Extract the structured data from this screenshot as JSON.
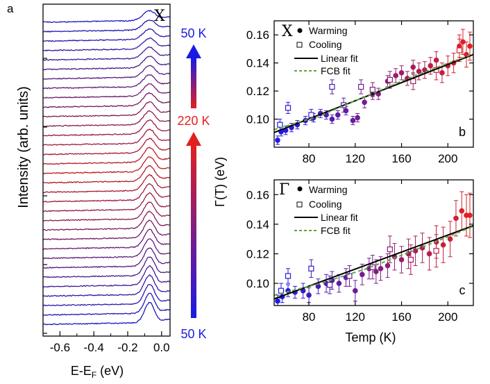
{
  "figure": {
    "panel_a": {
      "label": "a",
      "symmetry_point": "X",
      "ylabel": "Intensity (arb. units)",
      "xlabel_main": "E-E",
      "xlabel_sub": "F",
      "xlabel_unit": " (eV)",
      "temp_top": "50 K",
      "temp_mid": "220 K",
      "temp_bottom": "50 K",
      "colors": {
        "cold": "#1a1ae6",
        "hot": "#e32020"
      }
    },
    "panel_b": {
      "label": "b",
      "symmetry": "X",
      "legend": {
        "warming": "Warming",
        "cooling": "Cooling",
        "linear": "Linear fit",
        "fcb": "FCB fit"
      }
    },
    "panel_c": {
      "label": "c",
      "symmetry": "Γ",
      "legend": {
        "warming": "Warming",
        "cooling": "Cooling",
        "linear": "Linear fit",
        "fcb": "FCB fit"
      }
    },
    "shared": {
      "ylabel_bc": "Γ(T) (eV)",
      "xlabel_bc": "Temp (K)"
    }
  },
  "chart_data": [
    {
      "type": "line",
      "panel": "a",
      "title": "",
      "xlabel": "E-E_F (eV)",
      "ylabel": "Intensity (arb. units)",
      "xlim": [
        -0.7,
        0.05
      ],
      "xticks": [
        -0.6,
        -0.4,
        -0.2,
        0.0
      ],
      "xtick_labels": [
        "-0.6",
        "-0.4",
        "-0.2",
        "0.0"
      ],
      "n_curves": 33,
      "temperature_sequence_K": [
        50,
        220,
        50
      ],
      "annotations": [
        "X",
        "50 K",
        "220 K",
        "50 K"
      ],
      "peak_position_eV": -0.07
    },
    {
      "type": "scatter",
      "panel": "b",
      "symmetry": "X",
      "xlabel": "Temp (K)",
      "ylabel": "Γ(T) (eV)",
      "xlim": [
        50,
        222
      ],
      "ylim": [
        0.08,
        0.17
      ],
      "xticks": [
        80,
        120,
        160,
        200
      ],
      "yticks": [
        0.1,
        0.12,
        0.14,
        0.16
      ],
      "ytick_labels": [
        "0.10",
        "0.12",
        "0.14",
        "0.16"
      ],
      "series": [
        {
          "name": "Warming",
          "marker": "filled-circle",
          "x": [
            53,
            56,
            60,
            65,
            70,
            77,
            84,
            90,
            95,
            100,
            105,
            112,
            118,
            122,
            128,
            135,
            140,
            148,
            155,
            160,
            165,
            170,
            175,
            180,
            185,
            190,
            195,
            200,
            205,
            210,
            213,
            216,
            219
          ],
          "y": [
            0.085,
            0.091,
            0.092,
            0.094,
            0.096,
            0.099,
            0.101,
            0.104,
            0.103,
            0.1,
            0.103,
            0.106,
            0.099,
            0.101,
            0.112,
            0.118,
            0.118,
            0.127,
            0.131,
            0.133,
            0.129,
            0.137,
            0.134,
            0.135,
            0.138,
            0.142,
            0.133,
            0.138,
            0.14,
            0.152,
            0.155,
            0.146,
            0.152
          ],
          "err": [
            0.003,
            0.003,
            0.003,
            0.003,
            0.003,
            0.003,
            0.003,
            0.003,
            0.003,
            0.003,
            0.003,
            0.003,
            0.003,
            0.003,
            0.004,
            0.004,
            0.004,
            0.004,
            0.005,
            0.005,
            0.005,
            0.005,
            0.006,
            0.006,
            0.006,
            0.006,
            0.007,
            0.007,
            0.007,
            0.008,
            0.009,
            0.009,
            0.01
          ]
        },
        {
          "name": "Cooling",
          "marker": "open-square",
          "x": [
            55,
            62,
            82,
            100,
            110,
            125,
            135,
            150,
            170,
            190,
            210
          ],
          "y": [
            0.096,
            0.108,
            0.103,
            0.123,
            0.11,
            0.123,
            0.121,
            0.128,
            0.127,
            0.135,
            0.149
          ],
          "err": [
            0.004,
            0.004,
            0.004,
            0.005,
            0.005,
            0.005,
            0.005,
            0.006,
            0.006,
            0.007,
            0.008
          ]
        },
        {
          "name": "Linear fit",
          "style": "solid-black",
          "x": [
            50,
            222
          ],
          "y": [
            0.0905,
            0.146
          ]
        },
        {
          "name": "FCB fit",
          "style": "dashed-green",
          "x": [
            50,
            90,
            130,
            170,
            222
          ],
          "y": [
            0.0925,
            0.1025,
            0.1165,
            0.1305,
            0.1465
          ]
        }
      ]
    },
    {
      "type": "scatter",
      "panel": "c",
      "symmetry": "Γ",
      "xlabel": "Temp (K)",
      "ylabel": "Γ(T) (eV)",
      "xlim": [
        50,
        222
      ],
      "ylim": [
        0.085,
        0.17
      ],
      "xticks": [
        80,
        120,
        160,
        200
      ],
      "xtick_labels": [
        "80",
        "120",
        "160",
        "200"
      ],
      "yticks": [
        0.1,
        0.12,
        0.14,
        0.16
      ],
      "ytick_labels": [
        "0.10",
        "0.12",
        "0.14",
        "0.16"
      ],
      "series": [
        {
          "name": "Warming",
          "marker": "filled-circle",
          "x": [
            53,
            57,
            62,
            68,
            75,
            80,
            88,
            95,
            100,
            106,
            112,
            120,
            126,
            132,
            138,
            142,
            148,
            154,
            160,
            166,
            172,
            178,
            184,
            190,
            196,
            202,
            207,
            212,
            216,
            219
          ],
          "y": [
            0.088,
            0.091,
            0.095,
            0.094,
            0.095,
            0.092,
            0.098,
            0.1,
            0.102,
            0.1,
            0.104,
            0.095,
            0.106,
            0.11,
            0.108,
            0.11,
            0.112,
            0.118,
            0.116,
            0.12,
            0.122,
            0.124,
            0.12,
            0.128,
            0.126,
            0.13,
            0.144,
            0.149,
            0.146,
            0.146
          ],
          "err": [
            0.004,
            0.004,
            0.004,
            0.004,
            0.005,
            0.005,
            0.005,
            0.006,
            0.006,
            0.006,
            0.006,
            0.007,
            0.007,
            0.007,
            0.008,
            0.008,
            0.008,
            0.009,
            0.009,
            0.01,
            0.01,
            0.01,
            0.011,
            0.011,
            0.012,
            0.012,
            0.012,
            0.013,
            0.014,
            0.015
          ]
        },
        {
          "name": "Cooling",
          "marker": "open-square",
          "x": [
            56,
            62,
            82,
            98,
            115,
            135,
            150,
            168,
            190
          ],
          "y": [
            0.095,
            0.105,
            0.11,
            0.099,
            0.105,
            0.111,
            0.123,
            0.116,
            0.122
          ],
          "err": [
            0.005,
            0.005,
            0.006,
            0.006,
            0.007,
            0.008,
            0.009,
            0.01,
            0.011
          ]
        },
        {
          "name": "Linear fit",
          "style": "solid-black",
          "x": [
            50,
            222
          ],
          "y": [
            0.0895,
            0.139
          ]
        },
        {
          "name": "FCB fit",
          "style": "dashed-green",
          "x": [
            50,
            90,
            130,
            170,
            222
          ],
          "y": [
            0.092,
            0.1,
            0.11,
            0.122,
            0.1385
          ]
        }
      ]
    }
  ]
}
